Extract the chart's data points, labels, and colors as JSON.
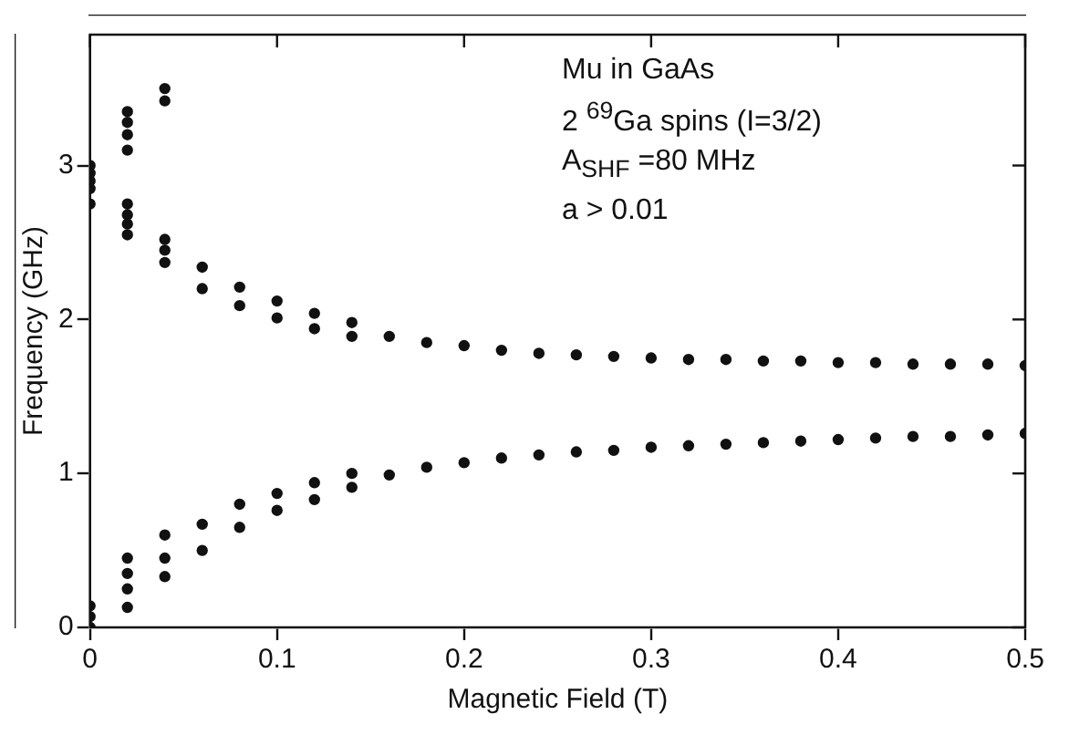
{
  "chart_data": {
    "type": "scatter",
    "xlabel": "Magnetic Field (T)",
    "ylabel": "Frequency (GHz)",
    "annotations": [
      "Mu in GaAs",
      "2 $^{69}$Ga spins (I=3/2)",
      "A$_{SHF}$ =80 MHz",
      "a > 0.01"
    ],
    "xlim": [
      0,
      0.5
    ],
    "ylim": [
      0,
      3.85
    ],
    "xticks": [
      {
        "value": 0,
        "label": "0"
      },
      0.1,
      0.2,
      0.3,
      0.4,
      0.5
    ],
    "yticks": [
      0,
      1,
      2,
      3
    ],
    "grid": false,
    "legend": false,
    "marker": "circle",
    "series": [
      {
        "color": "#111111",
        "x": [
          0,
          0,
          0,
          0,
          0,
          0,
          0,
          0,
          0.02,
          0.02,
          0.02,
          0.02,
          0.02,
          0.02,
          0.02,
          0.02,
          0.02,
          0.02,
          0.02,
          0.02,
          0.04,
          0.04,
          0.04,
          0.04,
          0.04,
          0.04,
          0.04,
          0.04,
          0.06,
          0.06,
          0.06,
          0.06,
          0.08,
          0.08,
          0.08,
          0.08,
          0.1,
          0.1,
          0.1,
          0.1,
          0.12,
          0.12,
          0.12,
          0.12,
          0.14,
          0.14,
          0.14,
          0.14,
          0.16,
          0.16,
          0.18,
          0.18,
          0.2,
          0.2,
          0.22,
          0.22,
          0.24,
          0.24,
          0.26,
          0.26,
          0.28,
          0.28,
          0.3,
          0.3,
          0.32,
          0.32,
          0.34,
          0.34,
          0.36,
          0.36,
          0.38,
          0.38,
          0.4,
          0.4,
          0.42,
          0.42,
          0.44,
          0.44,
          0.46,
          0.46,
          0.48,
          0.48,
          0.5,
          0.5
        ],
        "values": [
          2.75,
          2.85,
          2.9,
          2.95,
          3.0,
          0.0,
          0.07,
          0.14,
          3.1,
          3.2,
          3.28,
          3.35,
          2.55,
          2.62,
          2.68,
          2.75,
          0.13,
          0.25,
          0.35,
          0.45,
          3.42,
          3.5,
          2.37,
          2.45,
          2.52,
          0.33,
          0.45,
          0.6,
          2.2,
          2.34,
          0.5,
          0.67,
          2.09,
          2.21,
          0.65,
          0.8,
          2.01,
          2.12,
          0.76,
          0.87,
          1.94,
          2.04,
          0.83,
          0.94,
          1.89,
          1.98,
          0.91,
          1.0,
          1.89,
          0.99,
          1.85,
          1.04,
          1.83,
          1.07,
          1.8,
          1.1,
          1.78,
          1.12,
          1.77,
          1.14,
          1.76,
          1.15,
          1.75,
          1.17,
          1.74,
          1.18,
          1.74,
          1.19,
          1.73,
          1.2,
          1.73,
          1.21,
          1.72,
          1.22,
          1.72,
          1.23,
          1.71,
          1.24,
          1.71,
          1.24,
          1.71,
          1.25,
          1.7,
          1.26
        ]
      }
    ]
  }
}
